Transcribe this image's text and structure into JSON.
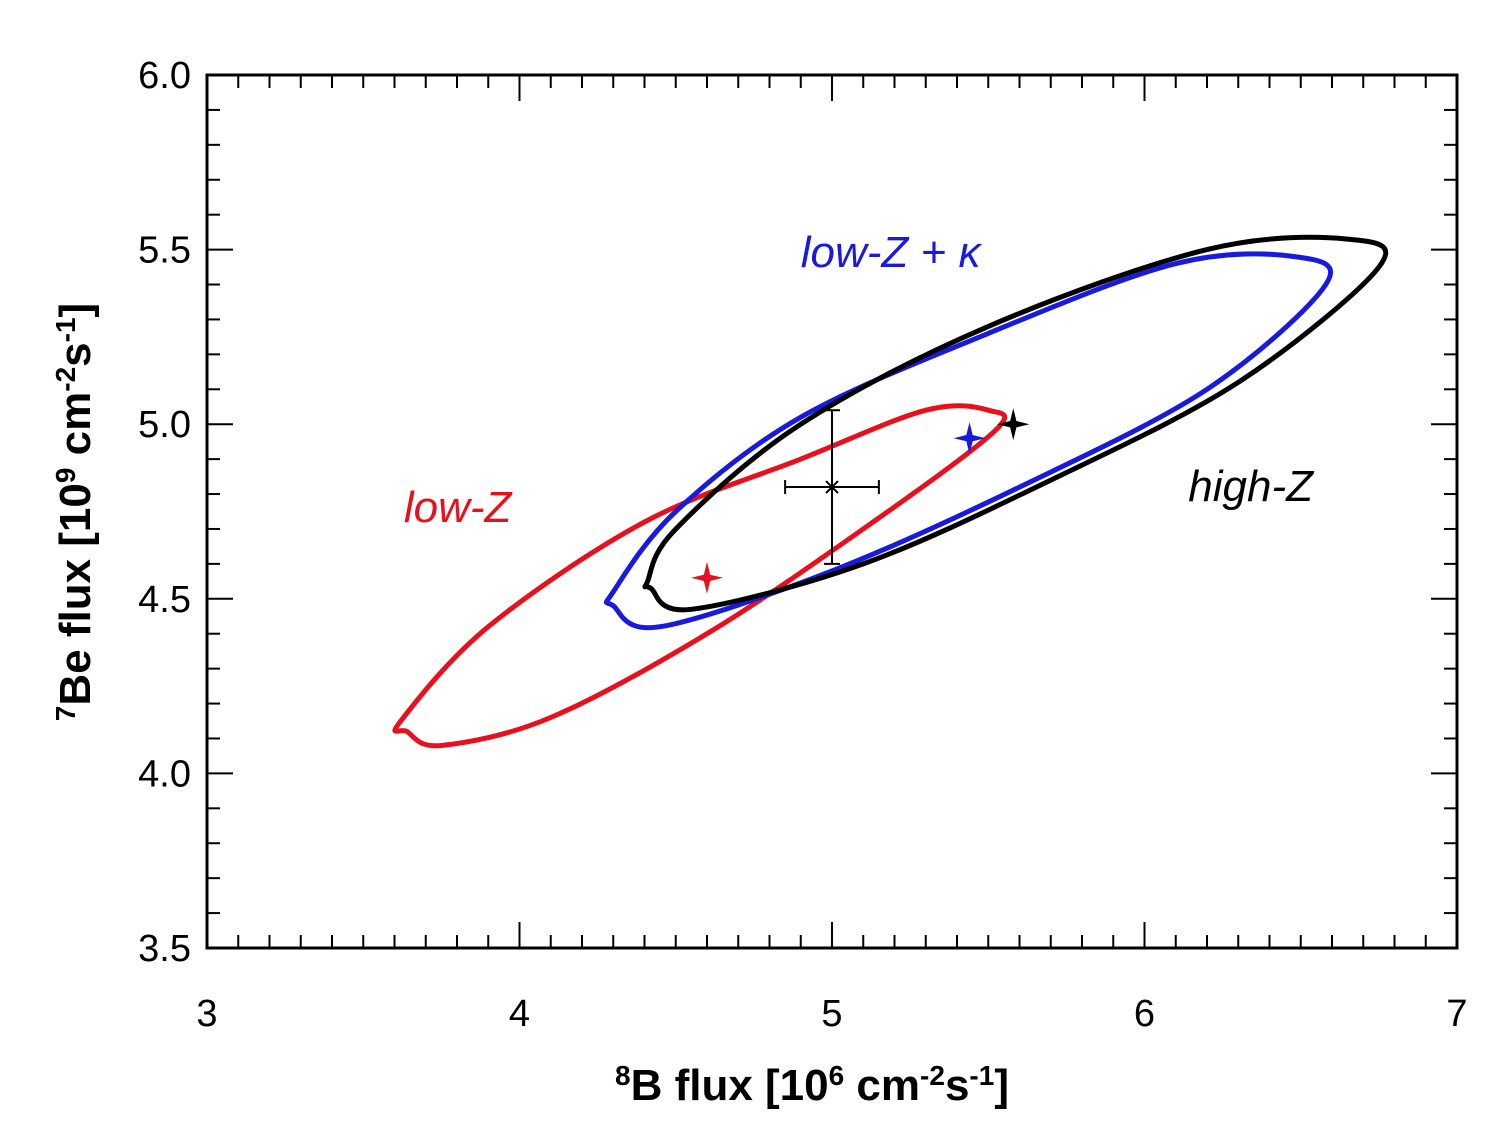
{
  "chart_data": {
    "type": "scatter",
    "xlabel": {
      "base": "8",
      "main": "B flux [10",
      "exp1": "6",
      "mid": " cm",
      "exp2": "-2",
      "mid2": "s",
      "exp3": "-1",
      "end": "]"
    },
    "ylabel": {
      "base": "7",
      "main": "Be flux [10",
      "exp1": "9",
      "mid": " cm",
      "exp2": "-2",
      "mid2": "s",
      "exp3": "-1",
      "end": "]"
    },
    "xlim": [
      3,
      7
    ],
    "ylim": [
      3.5,
      6.0
    ],
    "xticks": [
      "3",
      "4",
      "5",
      "6",
      "7"
    ],
    "yticks": [
      "3.5",
      "4.0",
      "4.5",
      "5.0",
      "5.5",
      "6.0"
    ],
    "grid": false,
    "legend": "none",
    "series": [
      {
        "name": "low-Z",
        "label_text": "low-Z",
        "label_at": [
          3.63,
          4.72
        ],
        "color": "#e8101c",
        "model_point": [
          4.6,
          4.56
        ],
        "ellipse_points": [
          [
            3.64,
            4.12
          ],
          [
            3.75,
            4.08
          ],
          [
            4.1,
            4.16
          ],
          [
            4.6,
            4.4
          ],
          [
            5.1,
            4.7
          ],
          [
            5.52,
            4.98
          ],
          [
            5.5,
            5.04
          ],
          [
            5.3,
            5.04
          ],
          [
            4.9,
            4.9
          ],
          [
            4.4,
            4.72
          ],
          [
            3.9,
            4.42
          ],
          [
            3.62,
            4.15
          ]
        ]
      },
      {
        "name": "low-Z + κ",
        "label_text": "low-Z + κ",
        "label_at": [
          4.9,
          5.45
        ],
        "color": "#1a1adc",
        "model_point": [
          5.44,
          4.96
        ],
        "ellipse_points": [
          [
            4.3,
            4.48
          ],
          [
            4.45,
            4.42
          ],
          [
            5.0,
            4.58
          ],
          [
            5.6,
            4.82
          ],
          [
            6.2,
            5.1
          ],
          [
            6.58,
            5.4
          ],
          [
            6.48,
            5.48
          ],
          [
            6.1,
            5.46
          ],
          [
            5.5,
            5.26
          ],
          [
            4.9,
            5.02
          ],
          [
            4.5,
            4.75
          ],
          [
            4.3,
            4.52
          ]
        ]
      },
      {
        "name": "high-Z",
        "label_text": "high-Z",
        "label_at": [
          6.14,
          4.78
        ],
        "color": "#000000",
        "model_point": [
          5.58,
          5.0
        ],
        "ellipse_points": [
          [
            4.42,
            4.53
          ],
          [
            4.55,
            4.47
          ],
          [
            5.1,
            4.6
          ],
          [
            5.7,
            4.84
          ],
          [
            6.3,
            5.12
          ],
          [
            6.75,
            5.45
          ],
          [
            6.65,
            5.53
          ],
          [
            6.2,
            5.5
          ],
          [
            5.5,
            5.28
          ],
          [
            4.9,
            5.0
          ],
          [
            4.5,
            4.7
          ],
          [
            4.41,
            4.55
          ]
        ]
      }
    ],
    "measurement": {
      "x": 5.0,
      "y": 4.82,
      "x_err": 0.15,
      "y_err_low": 0.22,
      "y_err_high": 0.22,
      "color": "#000000"
    }
  }
}
